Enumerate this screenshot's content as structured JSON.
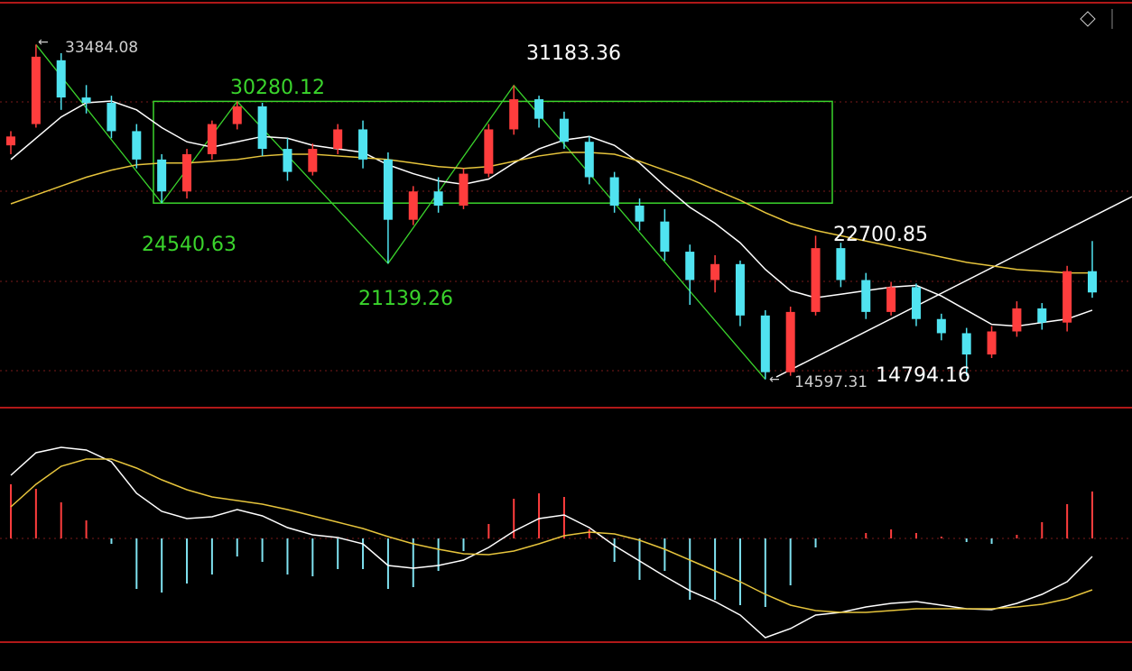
{
  "chart_data": [
    {
      "type": "candlestick",
      "ylim": [
        13000,
        36000
      ],
      "up_color": "#ff3d3d",
      "down_color": "#50e3f0",
      "range_color": "#3ad42c",
      "open": [
        27800,
        29000,
        32600,
        30500,
        30200,
        28600,
        27000,
        25200,
        27300,
        29000,
        30000,
        27600,
        26300,
        27600,
        28700,
        27000,
        23600,
        25200,
        24400,
        26200,
        28700,
        30400,
        29300,
        28000,
        26000,
        24400,
        23500,
        21800,
        20200,
        21100,
        18200,
        15000,
        18400,
        22000,
        20200,
        18400,
        19800,
        18000,
        17200,
        16000,
        17300,
        18600,
        17800,
        20700
      ],
      "high": [
        28600,
        33484.08,
        33000,
        31200,
        30600,
        29000,
        27300,
        27600,
        29200,
        30280.12,
        30200,
        28200,
        27900,
        29000,
        29200,
        27400,
        25500,
        26000,
        26500,
        29000,
        31183.36,
        30600,
        29700,
        28300,
        26300,
        24800,
        24200,
        22200,
        21600,
        21300,
        18500,
        18700,
        22700.85,
        22300,
        20600,
        20100,
        20000,
        18300,
        17500,
        17600,
        19000,
        18900,
        21000,
        22400
      ],
      "low": [
        27300,
        28800,
        29800,
        29600,
        28200,
        26500,
        24540.63,
        24800,
        27000,
        28700,
        27200,
        25800,
        26100,
        27300,
        26500,
        21139.26,
        23300,
        24000,
        24200,
        26000,
        28400,
        28800,
        27600,
        25600,
        24000,
        23000,
        21300,
        18800,
        19500,
        17600,
        14597.31,
        14800,
        18200,
        19800,
        18000,
        18200,
        17600,
        16800,
        14794.16,
        15800,
        17000,
        17400,
        17300,
        19200
      ],
      "close": [
        28300,
        32800,
        30500,
        30200,
        28600,
        27000,
        25200,
        27300,
        29000,
        30000,
        27600,
        26300,
        27600,
        28700,
        27000,
        23600,
        25200,
        24400,
        26200,
        28700,
        30400,
        29300,
        28000,
        26000,
        24400,
        23500,
        21800,
        20200,
        21100,
        18200,
        15000,
        18400,
        22000,
        20200,
        18400,
        19800,
        18000,
        17200,
        16000,
        17300,
        18600,
        17800,
        20700,
        19500
      ],
      "lines": [
        {
          "color": "#ffffff",
          "values": [
            27000,
            28200,
            29400,
            30200,
            30300,
            29800,
            28800,
            28000,
            27700,
            28000,
            28300,
            28200,
            27800,
            27600,
            27400,
            26700,
            26200,
            25800,
            25600,
            25900,
            26800,
            27600,
            28100,
            28300,
            27800,
            26800,
            25500,
            24300,
            23400,
            22300,
            20800,
            19600,
            19200,
            19400,
            19600,
            19800,
            19900,
            19300,
            18500,
            17700,
            17600,
            17800,
            18000,
            18500
          ]
        },
        {
          "color": "#e6c43c",
          "values": [
            24500,
            25000,
            25500,
            26000,
            26400,
            26700,
            26800,
            26800,
            26900,
            27000,
            27200,
            27300,
            27300,
            27200,
            27100,
            27000,
            26800,
            26600,
            26500,
            26600,
            26900,
            27200,
            27400,
            27400,
            27300,
            26900,
            26400,
            25900,
            25300,
            24700,
            24000,
            23400,
            23000,
            22700,
            22400,
            22100,
            21800,
            21500,
            21200,
            21000,
            20800,
            20700,
            20600,
            20600
          ]
        }
      ],
      "annotations": [
        {
          "text": "33484.08",
          "color": "#cfcfcf"
        },
        {
          "text": "30280.12",
          "color": "#3ad42c"
        },
        {
          "text": "31183.36",
          "color": "#ffffff"
        },
        {
          "text": "24540.63",
          "color": "#3ad42c"
        },
        {
          "text": "21139.26",
          "color": "#3ad42c"
        },
        {
          "text": "22700.85",
          "color": "#ffffff"
        },
        {
          "text": "14597.31",
          "color": "#cfcfcf"
        },
        {
          "text": "14794.16",
          "color": "#ffffff"
        }
      ]
    },
    {
      "type": "macd",
      "ylim": [
        -1150,
        1420
      ],
      "series": [
        {
          "color": "#ffffff",
          "values": [
            700,
            950,
            1010,
            980,
            850,
            500,
            300,
            220,
            240,
            320,
            250,
            120,
            40,
            10,
            -60,
            -300,
            -330,
            -300,
            -240,
            -100,
            80,
            220,
            260,
            120,
            -80,
            -250,
            -420,
            -580,
            -700,
            -850,
            -1100,
            -1000,
            -850,
            -820,
            -760,
            -720,
            -700,
            -740,
            -780,
            -790,
            -720,
            -620,
            -480,
            -200
          ]
        },
        {
          "color": "#e6c43c",
          "values": [
            350,
            600,
            800,
            880,
            880,
            780,
            650,
            540,
            460,
            420,
            380,
            320,
            250,
            180,
            110,
            20,
            -60,
            -120,
            -170,
            -180,
            -140,
            -60,
            30,
            70,
            50,
            -20,
            -120,
            -240,
            -360,
            -480,
            -620,
            -740,
            -800,
            -820,
            -820,
            -800,
            -780,
            -780,
            -780,
            -780,
            -760,
            -730,
            -670,
            -570
          ]
        }
      ],
      "histogram": {
        "up_color": "#ff3d3d",
        "down_color": "#7fe2f0",
        "values": [
          600,
          550,
          400,
          200,
          -60,
          -560,
          -600,
          -500,
          -400,
          -200,
          -260,
          -400,
          -420,
          -340,
          -340,
          -560,
          -540,
          -360,
          -140,
          160,
          440,
          500,
          460,
          100,
          -260,
          -460,
          -360,
          -680,
          -680,
          -740,
          -760,
          -520,
          -100,
          0,
          60,
          100,
          60,
          20,
          -40,
          -60,
          40,
          180,
          380,
          520
        ]
      }
    }
  ]
}
